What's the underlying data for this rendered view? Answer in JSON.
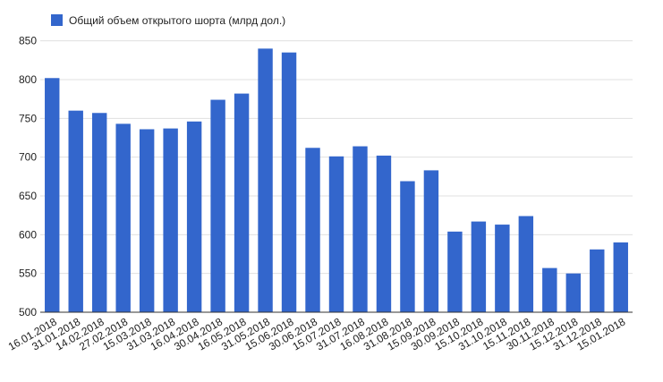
{
  "chart_data": {
    "type": "bar",
    "categories": [
      "16.01.2018",
      "31.01.2018",
      "14.02.2018",
      "27.02.2018",
      "15.03.2018",
      "31.03.2018",
      "16.04.2018",
      "30.04.2018",
      "16.05.2018",
      "31.05.2018",
      "15.06.2018",
      "30.06.2018",
      "15.07.2018",
      "31.07.2018",
      "16.08.2018",
      "31.08.2018",
      "15.09.2018",
      "30.09.2018",
      "15.10.2018",
      "31.10.2018",
      "15.11.2018",
      "30.11.2018",
      "15.12.2018",
      "31.12.2018",
      "15.01.2018"
    ],
    "series": [
      {
        "name": "Общий объем открытого шорта (млрд дол.)",
        "color": "#3366cc",
        "values": [
          802,
          760,
          757,
          743,
          736,
          737,
          746,
          774,
          782,
          840,
          835,
          712,
          701,
          714,
          702,
          669,
          683,
          604,
          617,
          613,
          624,
          557,
          550,
          581,
          590
        ]
      }
    ],
    "yticks": [
      500,
      550,
      600,
      650,
      700,
      750,
      800,
      850
    ],
    "ylim": [
      500,
      860
    ],
    "grid": true,
    "legend": "top-left"
  }
}
